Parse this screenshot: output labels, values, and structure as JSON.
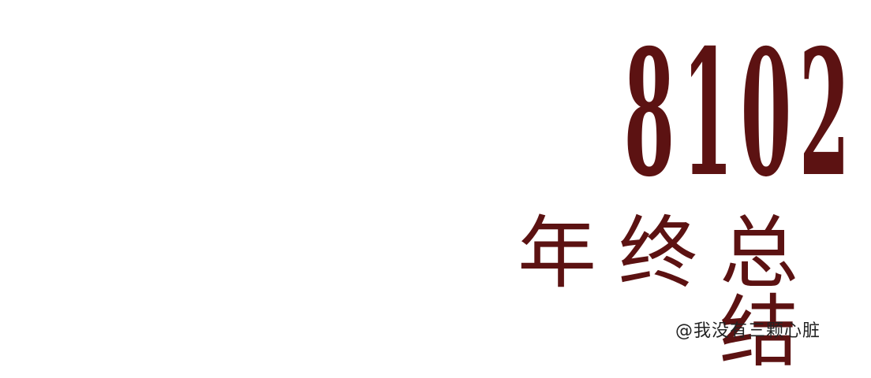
{
  "poster": {
    "year_text": "8102",
    "year_digits": [
      "8",
      "1",
      "0",
      "2"
    ],
    "title_text": "年终总结",
    "credit_text": "@我没有三颗心脏"
  },
  "colors": {
    "accent": "#5c1212",
    "text": "#222222",
    "background": "#ffffff"
  }
}
